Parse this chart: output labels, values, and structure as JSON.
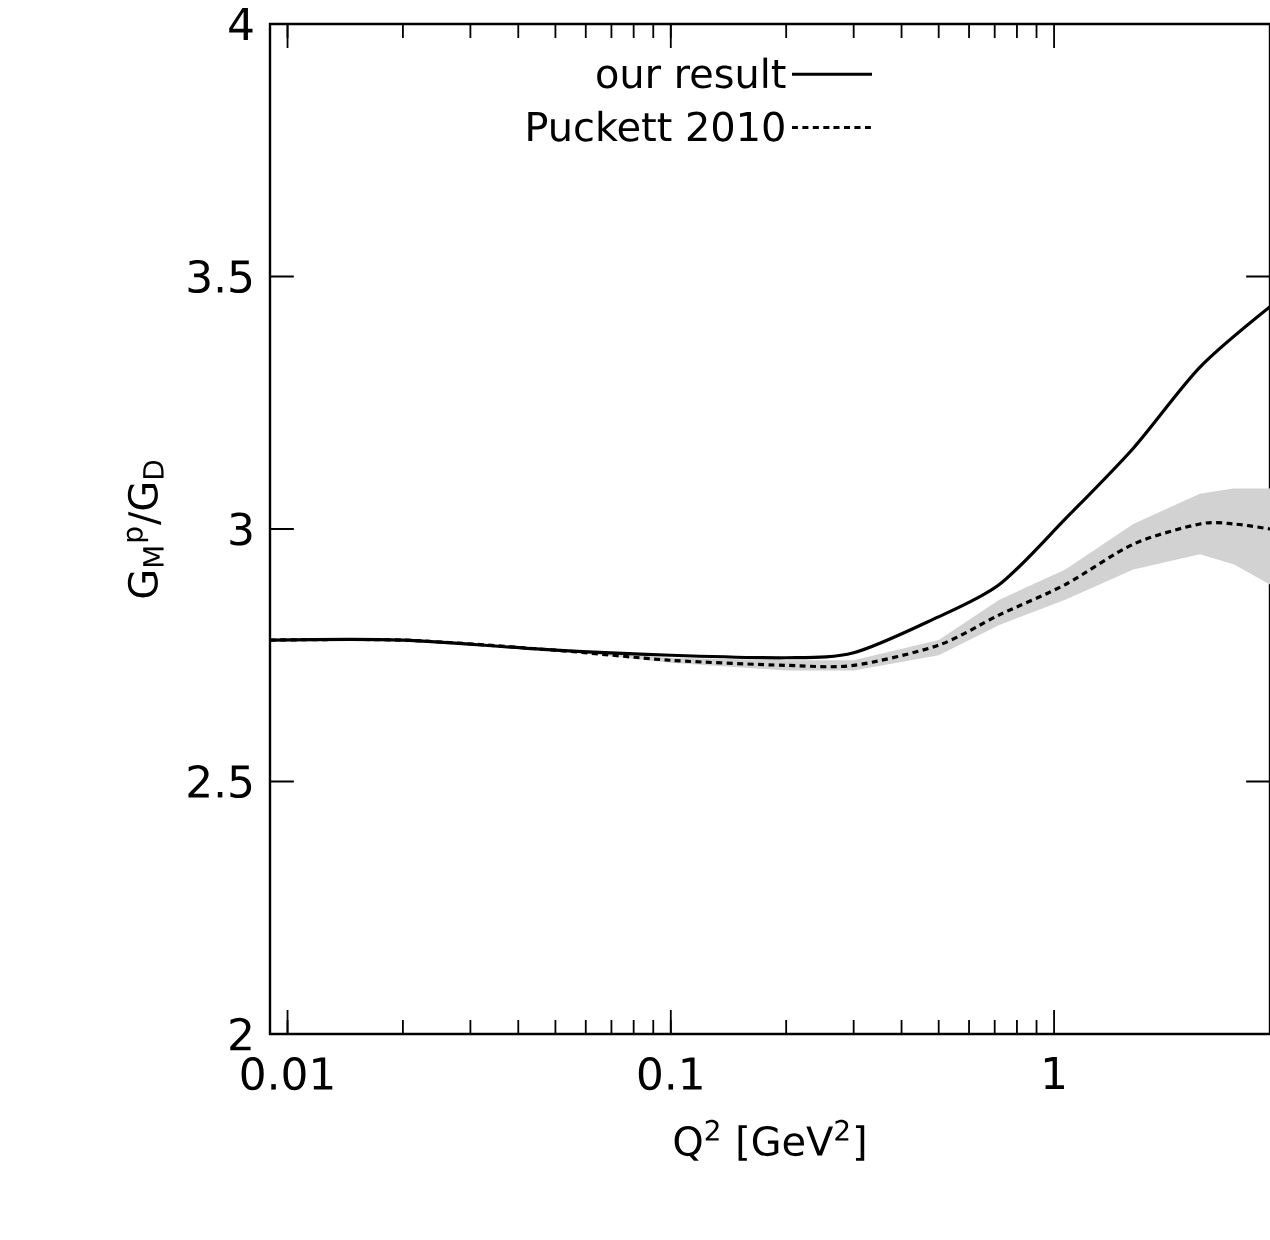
{
  "chart_data": {
    "type": "line",
    "xlabel": "Q$^{2}$ [GeV$^{2}$]",
    "ylabel": "G$_{M}$$^{p}$/G$_{D}$",
    "log": "x",
    "xlim": [
      0.009,
      3.66
    ],
    "ylim": [
      2,
      4
    ],
    "xticks": [
      0.01,
      0.1,
      1
    ],
    "yticks": [
      2,
      2.5,
      3,
      3.5,
      4
    ],
    "legend": "top left",
    "grid": false,
    "series": [
      {
        "name": "our result",
        "color": "#000000",
        "line_style": "solid",
        "x": [
          0.009,
          0.02,
          0.05,
          0.1,
          0.2,
          0.3,
          0.48,
          0.72,
          1.07,
          1.61,
          2.4,
          3.66
        ],
        "values": [
          2.78,
          2.78,
          2.76,
          2.75,
          2.745,
          2.755,
          2.82,
          2.89,
          3.02,
          3.16,
          3.32,
          3.44
        ]
      },
      {
        "name": "Puckett 2010",
        "color": "#000000",
        "line_style": "dotted",
        "x": [
          0.009,
          0.02,
          0.05,
          0.1,
          0.2,
          0.3,
          0.5,
          0.72,
          1.07,
          1.61,
          2.4,
          2.94,
          3.66
        ],
        "values": [
          2.78,
          2.78,
          2.76,
          2.74,
          2.73,
          2.73,
          2.77,
          2.83,
          2.89,
          2.97,
          3.01,
          3.01,
          3.0
        ],
        "upper": [
          2.78,
          2.78,
          2.76,
          2.745,
          2.74,
          2.74,
          2.78,
          2.86,
          2.92,
          3.01,
          3.07,
          3.08,
          3.08
        ],
        "lower": [
          2.78,
          2.78,
          2.76,
          2.735,
          2.72,
          2.72,
          2.75,
          2.81,
          2.86,
          2.92,
          2.95,
          2.93,
          2.89
        ]
      }
    ]
  }
}
